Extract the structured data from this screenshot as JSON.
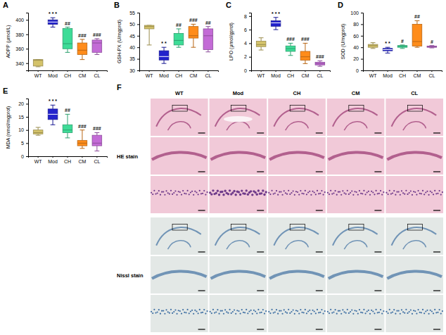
{
  "chart_data": [
    {
      "type": "box",
      "panel": "A",
      "ylabel": "AOPP (μmol/L)",
      "categories": [
        "WT",
        "Mod",
        "CH",
        "CM",
        "CL"
      ],
      "colors": [
        "#d4c36a",
        "#2222cc",
        "#3ddc97",
        "#ff8c1a",
        "#c36bd6"
      ],
      "min": [
        335,
        390,
        355,
        345,
        352
      ],
      "q1": [
        336,
        394,
        360,
        352,
        355
      ],
      "median": [
        344,
        397,
        367,
        358,
        368
      ],
      "q3": [
        345,
        400,
        388,
        368,
        372
      ],
      "max": [
        345,
        403,
        390,
        373,
        374
      ],
      "annotations": [
        null,
        "* * *",
        "##",
        "###",
        "###"
      ],
      "ylim": [
        330,
        410
      ],
      "yticks": [
        340,
        360,
        380,
        400
      ]
    },
    {
      "type": "box",
      "panel": "B",
      "ylabel": "GSH-PX (U/mgprot)",
      "categories": [
        "WT",
        "Mod",
        "CH",
        "CM",
        "CL"
      ],
      "colors": [
        "#d4c36a",
        "#2222cc",
        "#3ddc97",
        "#ff8c1a",
        "#c36bd6"
      ],
      "min": [
        41,
        33,
        40,
        40,
        38
      ],
      "q1": [
        48,
        34.5,
        41,
        44,
        39
      ],
      "median": [
        49,
        36,
        43,
        45,
        45
      ],
      "q3": [
        49.5,
        38.5,
        46,
        49,
        48
      ],
      "max": [
        49.5,
        40,
        48,
        50,
        49
      ],
      "annotations": [
        null,
        "* *",
        "##",
        "###",
        "##"
      ],
      "ylim": [
        30,
        55
      ],
      "yticks": [
        30,
        35,
        40,
        45,
        50,
        55
      ]
    },
    {
      "type": "box",
      "panel": "C",
      "ylabel": "LPO (μmol/gprot)",
      "categories": [
        "WT",
        "Mod",
        "CH",
        "CM",
        "CL"
      ],
      "colors": [
        "#d4c36a",
        "#2222cc",
        "#3ddc97",
        "#ff8c1a",
        "#c36bd6"
      ],
      "min": [
        3,
        6,
        2.2,
        1,
        0.6
      ],
      "q1": [
        3.5,
        6.5,
        2.8,
        1.5,
        0.8
      ],
      "median": [
        3.8,
        7,
        3.2,
        2,
        1
      ],
      "q3": [
        4.3,
        7.3,
        3.6,
        2.8,
        1.2
      ],
      "max": [
        4.8,
        7.8,
        4,
        4,
        1.4
      ],
      "annotations": [
        null,
        "* * *",
        "###",
        "###",
        "###"
      ],
      "ylim": [
        0,
        8.5
      ],
      "yticks": [
        0,
        2,
        4,
        6,
        8
      ]
    },
    {
      "type": "box",
      "panel": "D",
      "ylabel": "SOD (U/mgprot)",
      "categories": [
        "WT",
        "Mod",
        "CH",
        "CM",
        "CL"
      ],
      "colors": [
        "#d4c36a",
        "#2222cc",
        "#3ddc97",
        "#ff8c1a",
        "#c36bd6"
      ],
      "min": [
        38,
        30,
        38,
        40,
        39
      ],
      "q1": [
        40,
        34,
        40,
        42,
        40
      ],
      "median": [
        43,
        36,
        42,
        50,
        41
      ],
      "q3": [
        45,
        38,
        43,
        80,
        42
      ],
      "max": [
        48,
        40,
        44,
        86,
        43
      ],
      "annotations": [
        null,
        "* *",
        "#",
        "##",
        "#"
      ],
      "ylim": [
        0,
        100
      ],
      "yticks": [
        0,
        20,
        40,
        60,
        80,
        100
      ]
    },
    {
      "type": "box",
      "panel": "E",
      "ylabel": "MDA (nmol/mgprot)",
      "categories": [
        "WT",
        "Mod",
        "CH",
        "CM",
        "CL"
      ],
      "colors": [
        "#d4c36a",
        "#2222cc",
        "#3ddc97",
        "#ff8c1a",
        "#c36bd6"
      ],
      "min": [
        8,
        12,
        7,
        3,
        2
      ],
      "q1": [
        8.5,
        14,
        9,
        4,
        4
      ],
      "median": [
        9,
        16,
        10,
        5,
        5
      ],
      "q3": [
        10,
        18,
        12,
        6,
        8
      ],
      "max": [
        11,
        19.5,
        16,
        10,
        9
      ],
      "annotations": [
        null,
        "* * *",
        "##",
        "###",
        "###"
      ],
      "ylim": [
        0,
        22
      ],
      "yticks": [
        0,
        5,
        10,
        15,
        20
      ]
    }
  ],
  "panel_f": {
    "panel": "F",
    "columns": [
      "WT",
      "Mod",
      "CH",
      "CM",
      "CL"
    ],
    "rows": [
      "HE stain",
      "Nissl stain"
    ]
  }
}
